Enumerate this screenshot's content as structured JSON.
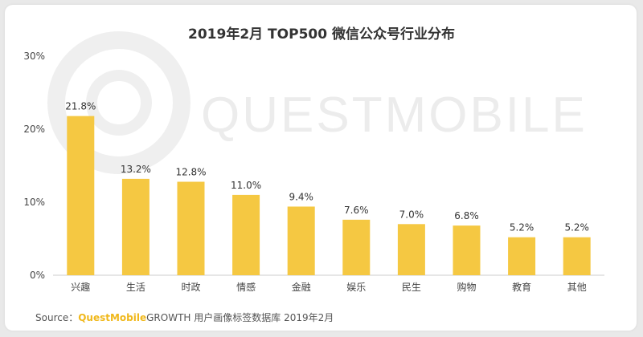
{
  "chart_data": {
    "type": "bar",
    "title": "2019年2月 TOP500 微信公众号行业分布",
    "categories": [
      "兴趣",
      "生活",
      "时政",
      "情感",
      "金融",
      "娱乐",
      "民生",
      "购物",
      "教育",
      "其他"
    ],
    "values": [
      21.8,
      13.2,
      12.8,
      11.0,
      9.4,
      7.6,
      7.0,
      6.8,
      5.2,
      5.2
    ],
    "data_labels": [
      "21.8%",
      "13.2%",
      "12.8%",
      "11.0%",
      "9.4%",
      "7.6%",
      "7.0%",
      "6.8%",
      "5.2%",
      "5.2%"
    ],
    "ylim": [
      0,
      30
    ],
    "yticks": [
      0,
      10,
      20,
      30
    ],
    "ytick_labels": [
      "0%",
      "10%",
      "20%",
      "30%"
    ],
    "grid": false,
    "bar_color": "#f5c842"
  },
  "watermark": "QUESTMOBILE",
  "source": {
    "prefix": "Source：",
    "brand": "QuestMobile",
    "product": "GROWTH",
    "rest": " 用户画像标签数据库  2019年2月"
  },
  "colors": {
    "brand": "#f0b81b",
    "axis": "#cccccc"
  }
}
